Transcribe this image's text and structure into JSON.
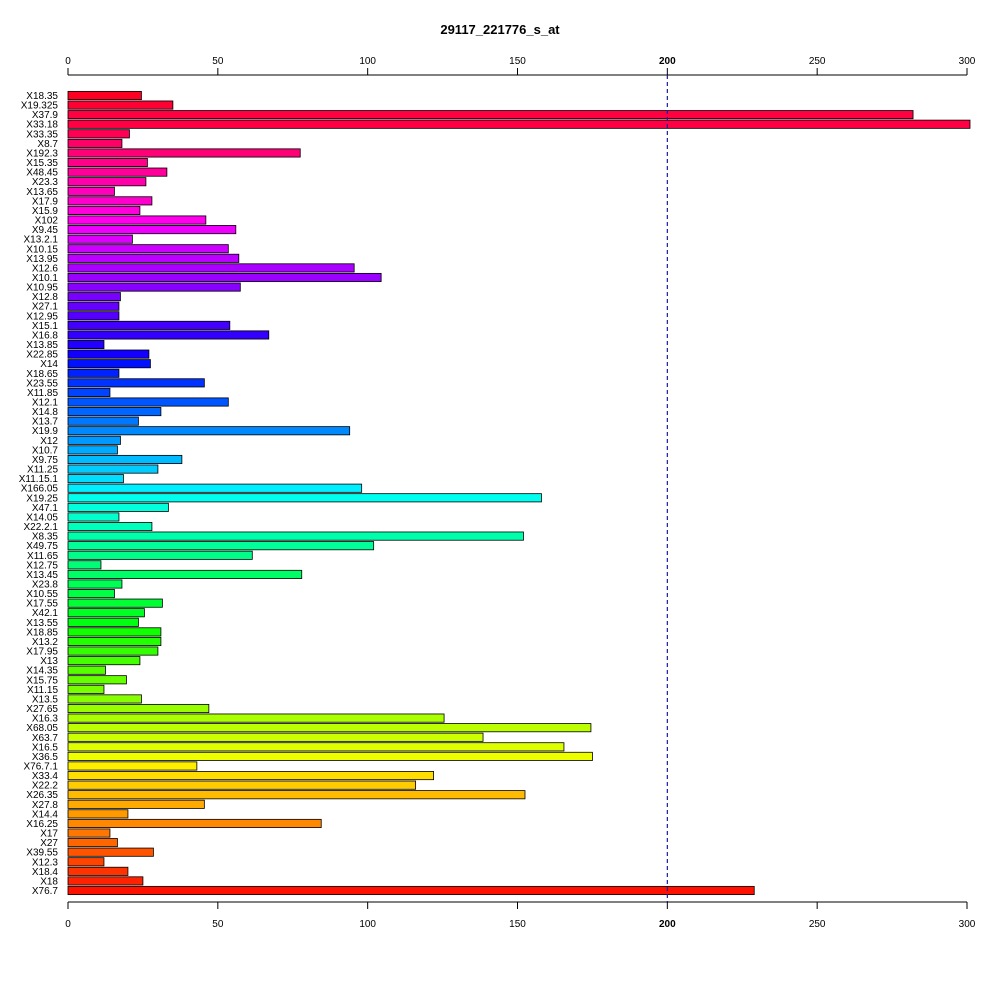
{
  "chart_data": {
    "type": "bar",
    "orientation": "horizontal",
    "title": "29117_221776_s_at",
    "xlim": [
      0,
      300
    ],
    "x_ticks": [
      0,
      50,
      100,
      150,
      200,
      250,
      300
    ],
    "reference_line": {
      "value": 200,
      "style": "dashed",
      "color": "#1a1aa0"
    },
    "grid": false,
    "categories": [
      "X18.35",
      "X19.325",
      "X37.9",
      "X33.18",
      "X33.35",
      "X8.7",
      "X192.3",
      "X15.35",
      "X48.45",
      "X23.3",
      "X13.65",
      "X17.9",
      "X15.9",
      "X102",
      "X9.45",
      "X13.2.1",
      "X10.15",
      "X13.95",
      "X12.6",
      "X10.1",
      "X10.95",
      "X12.8",
      "X27.1",
      "X12.95",
      "X15.1",
      "X16.8",
      "X13.85",
      "X22.85",
      "X14",
      "X18.65",
      "X23.55",
      "X11.85",
      "X12.1",
      "X14.8",
      "X13.7",
      "X19.9",
      "X12",
      "X10.7",
      "X9.75",
      "X11.25",
      "X11.15.1",
      "X166.05",
      "X19.25",
      "X47.1",
      "X14.05",
      "X22.2.1",
      "X8.35",
      "X49.75",
      "X11.65",
      "X12.75",
      "X13.45",
      "X23.8",
      "X10.55",
      "X17.55",
      "X42.1",
      "X13.55",
      "X18.85",
      "X13.2",
      "X17.95",
      "X13",
      "X14.35",
      "X15.75",
      "X11.15",
      "X13.5",
      "X27.65",
      "X16.3",
      "X68.05",
      "X63.7",
      "X16.5",
      "X36.5",
      "X76.7.1",
      "X33.4",
      "X22.2",
      "X26.35",
      "X27.8",
      "X14.4",
      "X16.25",
      "X17",
      "X27",
      "X39.55",
      "X12.3",
      "X18.4",
      "X18",
      "X76.7"
    ],
    "values": [
      24.5,
      35,
      282,
      301,
      20.5,
      18,
      77.5,
      26.5,
      33,
      26,
      15.5,
      28,
      24,
      46,
      56,
      21.5,
      53.5,
      57,
      95.5,
      104.5,
      57.5,
      17.5,
      17,
      17,
      54,
      67,
      12,
      27,
      27.5,
      17,
      45.5,
      14,
      53.5,
      31,
      23.5,
      94,
      17.5,
      16.5,
      38,
      30,
      18.5,
      98,
      158,
      33.5,
      17,
      28,
      152,
      102,
      61.5,
      11,
      78,
      18,
      15.5,
      31.5,
      25.5,
      23.5,
      31,
      31,
      30,
      24,
      12.5,
      19.5,
      12,
      24.5,
      47,
      125.5,
      174.5,
      138.5,
      165.5,
      175,
      43,
      122,
      116,
      152.5,
      45.5,
      20,
      84.5,
      14,
      16.5,
      28.5,
      12,
      20,
      25,
      229
    ],
    "colors": [
      "#FF0022",
      "#FF0033",
      "#FF0040",
      "#FF0044",
      "#FF0055",
      "#FF0066",
      "#FF0077",
      "#FF0088",
      "#FF0099",
      "#FF00AA",
      "#FF00BB",
      "#FF00CC",
      "#FF00DD",
      "#FF00EE",
      "#EE00FF",
      "#DD00FF",
      "#CC00FF",
      "#BB00FF",
      "#AA00FF",
      "#9900FF",
      "#8800FF",
      "#7700FF",
      "#6600FF",
      "#5500FF",
      "#4400FF",
      "#3300FF",
      "#2200FF",
      "#1100FF",
      "#0011FF",
      "#0022FF",
      "#0033FF",
      "#0044FF",
      "#0055FF",
      "#0066FF",
      "#0077FF",
      "#0088FF",
      "#0099FF",
      "#00AAFF",
      "#00BBFF",
      "#00CCFF",
      "#00DDFF",
      "#00EEFF",
      "#00FFEE",
      "#00FFDD",
      "#00FFCC",
      "#00FFBB",
      "#00FFAA",
      "#00FF99",
      "#00FF88",
      "#00FF77",
      "#00FF66",
      "#00FF55",
      "#00FF44",
      "#00FF33",
      "#00FF22",
      "#00FF11",
      "#11FF00",
      "#22FF00",
      "#33FF00",
      "#44FF00",
      "#55FF00",
      "#66FF00",
      "#77FF00",
      "#88FF00",
      "#99FF00",
      "#AAFF00",
      "#BBFF00",
      "#CCFF00",
      "#DDFF00",
      "#EEFF00",
      "#FFEE00",
      "#FFDD00",
      "#FFCC00",
      "#FFBB00",
      "#FFAA00",
      "#FF9900",
      "#FF8800",
      "#FF7700",
      "#FF6600",
      "#FF5500",
      "#FF4400",
      "#FF3300",
      "#FF2200",
      "#FF1100"
    ]
  }
}
